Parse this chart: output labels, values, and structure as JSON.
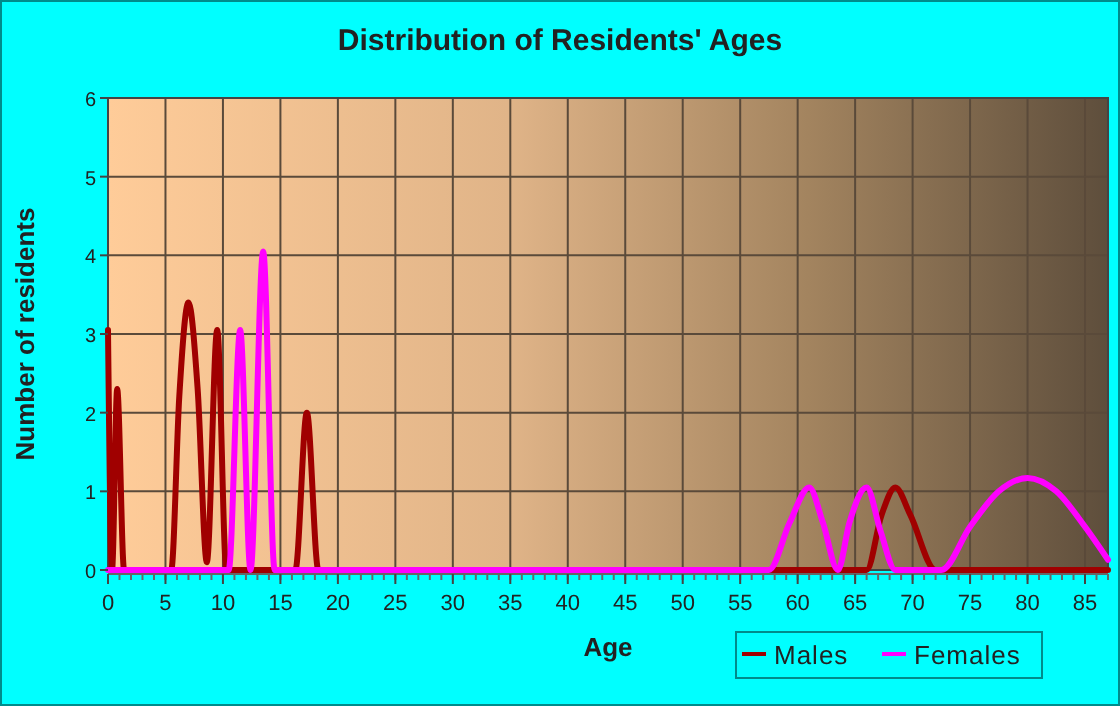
{
  "chart_data": {
    "type": "line",
    "title": "Distribution of Residents' Ages",
    "xlabel": "Age",
    "ylabel": "Number of residents",
    "xlim": [
      0,
      87
    ],
    "xticks": [
      0,
      5,
      10,
      15,
      20,
      25,
      30,
      35,
      40,
      45,
      50,
      55,
      60,
      65,
      70,
      75,
      80,
      85
    ],
    "ylim": [
      0,
      6
    ],
    "yticks": [
      0,
      1,
      2,
      3,
      4,
      5,
      6
    ],
    "grid": true,
    "legend": "bottom",
    "marker": "none",
    "line_style": "solid",
    "series": [
      {
        "name": "Males",
        "color": "#a00000",
        "x": [
          0,
          0.35,
          0.8,
          1.4,
          5.5,
          6.2,
          7,
          7.8,
          8.6,
          9.5,
          10.3,
          16.3,
          17.3,
          18.3,
          66,
          67.3,
          68.5,
          69.8,
          72,
          87
        ],
        "values": [
          3.05,
          0,
          2.3,
          0,
          0,
          2.2,
          3.4,
          2.3,
          0.1,
          3.05,
          0,
          0,
          2,
          0,
          0,
          0.7,
          1.05,
          0.7,
          0,
          0
        ]
      },
      {
        "name": "Females",
        "color": "#ff00ff",
        "x": [
          0,
          10.5,
          11.5,
          12.4,
          13.5,
          14.5,
          57.5,
          59.3,
          61,
          62.2,
          63.5,
          64.5,
          66,
          67.2,
          68.5,
          72.5,
          75,
          77.5,
          80,
          82.5,
          85,
          87
        ],
        "values": [
          0,
          0,
          3.05,
          0,
          4.05,
          0,
          0,
          0.6,
          1.05,
          0.6,
          0,
          0.6,
          1.05,
          0.5,
          0,
          0,
          0.55,
          1.0,
          1.17,
          1.0,
          0.55,
          0.13
        ]
      }
    ]
  }
}
